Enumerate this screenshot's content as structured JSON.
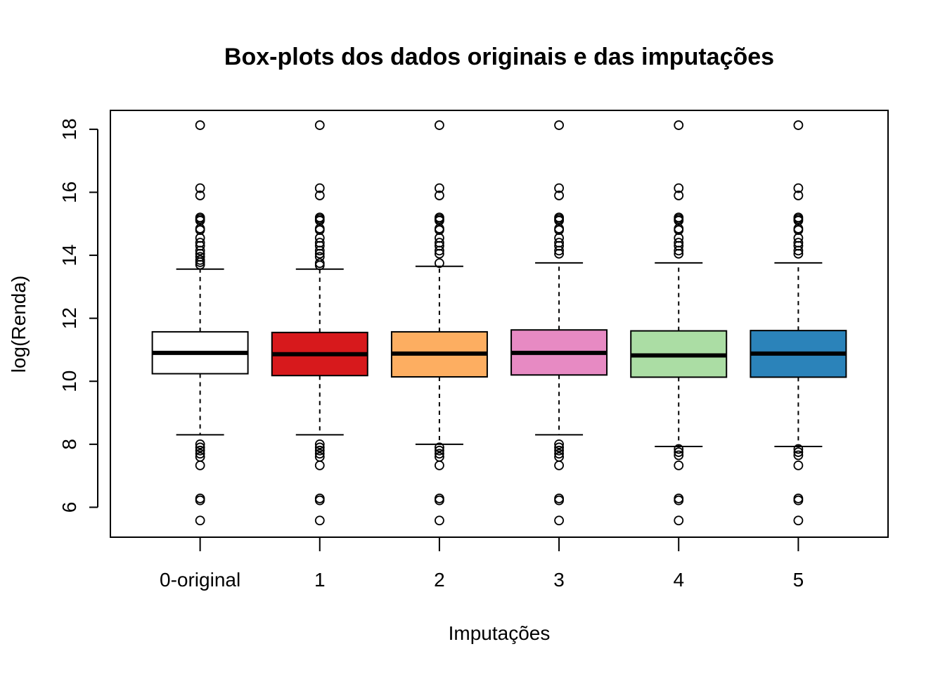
{
  "chart_data": {
    "type": "boxplot",
    "title": "Box-plots dos dados originais e das imputações",
    "xlabel": "Imputações",
    "ylabel": "log(Renda)",
    "ylim": [
      5.05,
      18.6
    ],
    "yticks": [
      6,
      8,
      10,
      12,
      14,
      16,
      18
    ],
    "ytick_labels": [
      "6",
      "8",
      "10",
      "12",
      "14",
      "16",
      "18"
    ],
    "grid": false,
    "legend": "none",
    "categories": [
      "0-original",
      "1",
      "2",
      "3",
      "4",
      "5"
    ],
    "boxes": [
      {
        "label": "0-original",
        "color": "#ffffff",
        "q1": 10.24,
        "median": 10.9,
        "q3": 11.57,
        "whisker_low": 8.3,
        "whisker_high": 13.56,
        "outliers": [
          18.13,
          16.13,
          15.9,
          15.2,
          15.15,
          15.1,
          14.85,
          14.8,
          14.55,
          14.4,
          14.3,
          14.15,
          14.05,
          13.95,
          13.85,
          13.78,
          13.7,
          8.0,
          7.9,
          7.8,
          7.7,
          7.6,
          7.33,
          6.28,
          6.22,
          5.58
        ]
      },
      {
        "label": "1",
        "color": "#d7191c",
        "q1": 10.18,
        "median": 10.86,
        "q3": 11.55,
        "whisker_low": 8.3,
        "whisker_high": 13.56,
        "outliers": [
          18.13,
          16.13,
          15.9,
          15.2,
          15.15,
          15.1,
          14.85,
          14.8,
          14.55,
          14.4,
          14.3,
          14.15,
          14.05,
          13.95,
          13.75,
          13.68,
          8.0,
          7.9,
          7.8,
          7.7,
          7.6,
          7.33,
          6.28,
          6.22,
          5.58
        ]
      },
      {
        "label": "2",
        "color": "#fdae61",
        "q1": 10.14,
        "median": 10.88,
        "q3": 11.57,
        "whisker_low": 8.0,
        "whisker_high": 13.65,
        "outliers": [
          18.13,
          16.13,
          15.9,
          15.2,
          15.15,
          15.1,
          14.85,
          14.8,
          14.55,
          14.4,
          14.3,
          14.15,
          14.05,
          13.75,
          7.9,
          7.8,
          7.7,
          7.6,
          7.33,
          6.28,
          6.22,
          5.58
        ]
      },
      {
        "label": "3",
        "color": "#e78ac3",
        "q1": 10.2,
        "median": 10.9,
        "q3": 11.63,
        "whisker_low": 8.3,
        "whisker_high": 13.76,
        "outliers": [
          18.13,
          16.13,
          15.9,
          15.2,
          15.15,
          15.1,
          14.85,
          14.8,
          14.55,
          14.4,
          14.3,
          14.15,
          14.05,
          8.0,
          7.9,
          7.8,
          7.7,
          7.6,
          7.33,
          6.28,
          6.22,
          5.58
        ]
      },
      {
        "label": "4",
        "color": "#abdda4",
        "q1": 10.13,
        "median": 10.82,
        "q3": 11.6,
        "whisker_low": 7.93,
        "whisker_high": 13.76,
        "outliers": [
          18.13,
          16.13,
          15.9,
          15.2,
          15.15,
          15.1,
          14.85,
          14.8,
          14.55,
          14.4,
          14.3,
          14.15,
          14.05,
          7.85,
          7.75,
          7.65,
          7.33,
          6.28,
          6.22,
          5.58
        ]
      },
      {
        "label": "5",
        "color": "#2b83ba",
        "q1": 10.13,
        "median": 10.88,
        "q3": 11.61,
        "whisker_low": 7.93,
        "whisker_high": 13.76,
        "outliers": [
          18.13,
          16.13,
          15.9,
          15.2,
          15.15,
          15.1,
          14.85,
          14.8,
          14.55,
          14.4,
          14.3,
          14.15,
          14.05,
          7.85,
          7.75,
          7.65,
          7.33,
          6.28,
          6.22,
          5.58
        ]
      }
    ]
  }
}
